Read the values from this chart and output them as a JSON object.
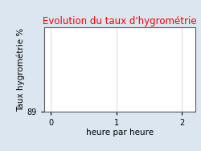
{
  "title": "Evolution du taux d'hygrométrie",
  "title_color": "#ff0000",
  "ylabel": "Taux hygrométrie %",
  "xlabel": "heure par heure",
  "background_color": "#dce6f0",
  "plot_background_color": "#ffffff",
  "xlim": [
    -0.1,
    2.2
  ],
  "ylim": [
    89.0,
    93.5
  ],
  "xticks": [
    0,
    1,
    2
  ],
  "yticks": [
    89.0
  ],
  "grid": true,
  "title_fontsize": 8.5,
  "label_fontsize": 7.5,
  "tick_fontsize": 7,
  "grid_color": "#cccccc",
  "spine_color": "#555555"
}
